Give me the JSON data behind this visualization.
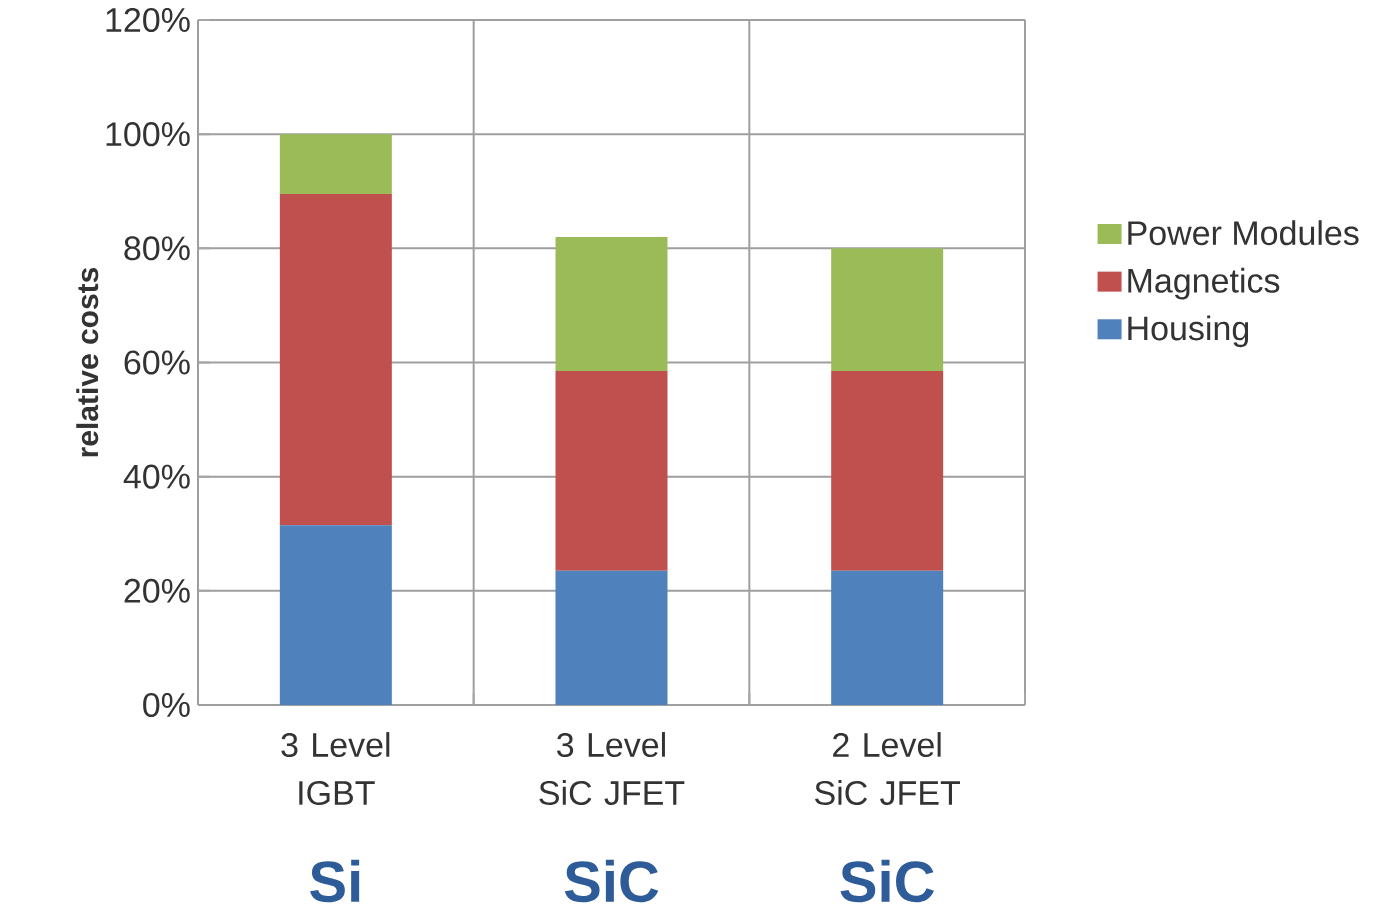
{
  "chart_data": {
    "type": "bar",
    "stacked": true,
    "ylabel": "relative costs",
    "categories": [
      "3 Level IGBT",
      "3 Level SiC JFET",
      "2 Level SiC JFET"
    ],
    "series": [
      {
        "name": "Housing",
        "color": "#4f81bd",
        "values": [
          31.5,
          23.5,
          23.5
        ]
      },
      {
        "name": "Magnetics",
        "color": "#c0504d",
        "values": [
          58,
          35,
          35
        ]
      },
      {
        "name": "Power Modules",
        "color": "#9bbb59",
        "values": [
          10.5,
          23.5,
          21.5
        ]
      }
    ],
    "ylim": [
      0,
      120
    ],
    "yticks": [
      {
        "value": 0,
        "label": "0%"
      },
      {
        "value": 20,
        "label": "20%"
      },
      {
        "value": 40,
        "label": "40%"
      },
      {
        "value": 60,
        "label": "60%"
      },
      {
        "value": 80,
        "label": "80%"
      },
      {
        "value": 100,
        "label": "100%"
      },
      {
        "value": 120,
        "label": "120%"
      }
    ],
    "grid": true,
    "legend": "right",
    "annotations": [
      "Si",
      "SiC",
      "SiC"
    ]
  }
}
